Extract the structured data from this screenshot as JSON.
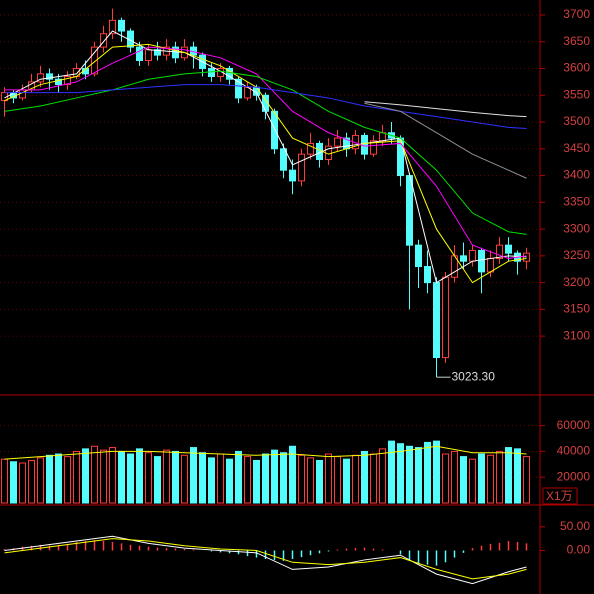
{
  "chart_data": [
    {
      "type": "candlestick",
      "open": [
        3540,
        3555,
        3545,
        3560,
        3575,
        3590,
        3580,
        3570,
        3585,
        3600,
        3590,
        3640,
        3665,
        3690,
        3670,
        3640,
        3615,
        3635,
        3625,
        3640,
        3620,
        3640,
        3625,
        3600,
        3585,
        3600,
        3580,
        3545,
        3565,
        3550,
        3520,
        3450,
        3410,
        3390,
        3440,
        3460,
        3430,
        3455,
        3470,
        3450,
        3475,
        3440,
        3465,
        3480,
        3470,
        3400,
        3270,
        3230,
        3200,
        3060,
        3210,
        3250,
        3240,
        3260,
        3220,
        3245,
        3270,
        3255,
        3240
      ],
      "high": [
        3565,
        3560,
        3570,
        3590,
        3605,
        3600,
        3590,
        3595,
        3610,
        3615,
        3650,
        3680,
        3712,
        3695,
        3675,
        3650,
        3645,
        3650,
        3655,
        3650,
        3655,
        3650,
        3630,
        3610,
        3610,
        3605,
        3585,
        3575,
        3570,
        3555,
        3525,
        3460,
        3430,
        3450,
        3480,
        3465,
        3470,
        3485,
        3480,
        3485,
        3480,
        3475,
        3495,
        3500,
        3475,
        3405,
        3280,
        3260,
        3210,
        3220,
        3270,
        3275,
        3270,
        3265,
        3260,
        3285,
        3285,
        3260,
        3265
      ],
      "low": [
        3510,
        3535,
        3540,
        3555,
        3565,
        3560,
        3555,
        3560,
        3580,
        3580,
        3585,
        3630,
        3655,
        3650,
        3630,
        3605,
        3605,
        3615,
        3615,
        3610,
        3615,
        3600,
        3585,
        3575,
        3575,
        3570,
        3535,
        3540,
        3540,
        3505,
        3440,
        3395,
        3365,
        3380,
        3430,
        3415,
        3420,
        3445,
        3435,
        3440,
        3430,
        3435,
        3455,
        3460,
        3380,
        3150,
        3190,
        3180,
        3023.3,
        3050,
        3200,
        3225,
        3230,
        3180,
        3210,
        3235,
        3240,
        3215,
        3225
      ],
      "close": [
        3555,
        3545,
        3560,
        3575,
        3590,
        3580,
        3570,
        3585,
        3600,
        3590,
        3640,
        3665,
        3690,
        3670,
        3640,
        3615,
        3635,
        3625,
        3640,
        3620,
        3640,
        3625,
        3600,
        3585,
        3600,
        3580,
        3545,
        3565,
        3550,
        3520,
        3450,
        3410,
        3390,
        3440,
        3460,
        3430,
        3455,
        3470,
        3450,
        3475,
        3440,
        3465,
        3480,
        3470,
        3400,
        3270,
        3230,
        3200,
        3060,
        3210,
        3250,
        3240,
        3260,
        3220,
        3245,
        3270,
        3255,
        3240,
        3255
      ],
      "up_color": "#ff3c3c",
      "down_color": "#54fcfc",
      "annotation": "3023.30",
      "ylim": [
        2990,
        3728
      ],
      "yticks": [
        3100,
        3150,
        3200,
        3250,
        3300,
        3350,
        3400,
        3450,
        3500,
        3550,
        3600,
        3650,
        3700
      ],
      "grid": true,
      "ma_x": [
        0,
        4,
        8,
        12,
        16,
        20,
        24,
        28,
        32,
        36,
        40,
        44,
        48,
        52,
        56,
        58
      ],
      "series": [
        {
          "color": "#ffffff",
          "values": [
            3545,
            3580,
            3590,
            3670,
            3635,
            3630,
            3595,
            3555,
            3420,
            3450,
            3460,
            3470,
            3200,
            3240,
            3250,
            3248
          ]
        },
        {
          "color": "#ffff00",
          "values": [
            3540,
            3570,
            3585,
            3640,
            3645,
            3630,
            3605,
            3565,
            3470,
            3440,
            3460,
            3465,
            3300,
            3200,
            3240,
            3245
          ]
        },
        {
          "color": "#ff00ff",
          "values": [
            3560,
            3560,
            3575,
            3610,
            3640,
            3635,
            3620,
            3590,
            3520,
            3480,
            3455,
            3460,
            3380,
            3270,
            3245,
            3250
          ]
        },
        {
          "color": "#00e000",
          "values": [
            3520,
            3530,
            3545,
            3560,
            3580,
            3590,
            3595,
            3585,
            3560,
            3520,
            3490,
            3470,
            3410,
            3330,
            3295,
            3290
          ]
        },
        {
          "color": "#3030ff",
          "values": [
            3555,
            3555,
            3555,
            3560,
            3565,
            3570,
            3570,
            3565,
            3555,
            3545,
            3530,
            3520,
            3510,
            3500,
            3490,
            3488
          ]
        },
        {
          "color": "#e0e0e0",
          "values": [
            null,
            null,
            null,
            null,
            null,
            null,
            null,
            null,
            null,
            null,
            3538,
            3532,
            3525,
            3518,
            3512,
            3510
          ]
        },
        {
          "color": "#909090",
          "values": [
            null,
            null,
            null,
            null,
            null,
            null,
            null,
            null,
            null,
            null,
            3535,
            3520,
            3480,
            3440,
            3410,
            3395
          ]
        }
      ]
    },
    {
      "type": "bar",
      "values": [
        34000,
        32000,
        31000,
        33000,
        35000,
        37000,
        38000,
        36000,
        40000,
        42000,
        44000,
        41000,
        43000,
        40000,
        38000,
        42000,
        39000,
        36000,
        41000,
        40000,
        37000,
        43000,
        39000,
        35000,
        38000,
        34000,
        40000,
        36000,
        33000,
        38000,
        41000,
        39000,
        44000,
        37000,
        35000,
        33000,
        38000,
        36000,
        34000,
        37000,
        40000,
        38000,
        42000,
        48000,
        46000,
        44000,
        43000,
        47000,
        48000,
        38000,
        40000,
        36000,
        34000,
        38000,
        37000,
        40000,
        43000,
        42000,
        36000
      ],
      "unit": "X1万",
      "ylim": [
        0,
        83000
      ],
      "yticks": [
        20000,
        40000,
        60000
      ],
      "ma_x": [
        0,
        4,
        8,
        12,
        16,
        20,
        24,
        28,
        32,
        36,
        40,
        44,
        48,
        52,
        56,
        58
      ],
      "series": [
        {
          "color": "#ffff00",
          "values": [
            34000,
            36000,
            38000,
            40000,
            40000,
            39000,
            38000,
            37000,
            38000,
            36000,
            37000,
            40000,
            44000,
            39000,
            39000,
            38000
          ]
        }
      ]
    },
    {
      "type": "macd",
      "values": [
        3,
        5,
        8,
        10,
        12,
        10,
        12,
        14,
        18,
        20,
        22,
        20,
        18,
        15,
        12,
        10,
        8,
        6,
        5,
        4,
        3,
        2,
        0,
        -2,
        -4,
        -6,
        -8,
        -12,
        -15,
        -18,
        -20,
        -22,
        -18,
        -14,
        -10,
        -6,
        -2,
        2,
        4,
        5,
        6,
        4,
        2,
        0,
        -8,
        -20,
        -28,
        -30,
        -32,
        -25,
        -15,
        -5,
        5,
        10,
        14,
        16,
        20,
        18,
        15
      ],
      "pos_color": "#ff3c3c",
      "neg_color": "#54fcfc",
      "ylim": [
        -92,
        94
      ],
      "yticks": [
        {
          "value": 0,
          "label": "0.00"
        },
        {
          "value": 50,
          "label": "50.00"
        }
      ],
      "ma_x": [
        0,
        4,
        8,
        12,
        16,
        20,
        24,
        28,
        32,
        36,
        40,
        44,
        48,
        52,
        56,
        58
      ],
      "series": [
        {
          "color": "#ffffff",
          "values": [
            0,
            10,
            20,
            30,
            15,
            5,
            0,
            -5,
            -40,
            -35,
            -20,
            -10,
            -50,
            -70,
            -45,
            -35
          ]
        },
        {
          "color": "#ffff00",
          "values": [
            -5,
            5,
            15,
            25,
            20,
            10,
            3,
            0,
            -25,
            -30,
            -25,
            -15,
            -40,
            -60,
            -50,
            -40
          ]
        }
      ]
    }
  ]
}
